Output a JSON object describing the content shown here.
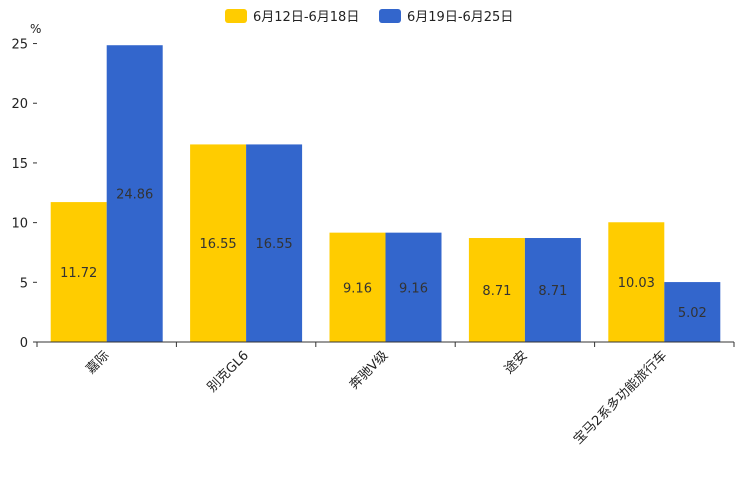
{
  "chart_data": {
    "type": "bar",
    "unit": "%",
    "categories": [
      "嘉际",
      "别克GL6",
      "奔驰V级",
      "途安",
      "宝马2系多功能旅行车"
    ],
    "series": [
      {
        "name": "6月12日-6月18日",
        "color": "#FFCC00",
        "values": [
          11.72,
          16.55,
          9.16,
          8.71,
          10.03
        ]
      },
      {
        "name": "6月19日-6月25日",
        "color": "#3366CC",
        "values": [
          24.86,
          16.55,
          9.16,
          8.71,
          5.02
        ]
      }
    ],
    "yticks": [
      0,
      5,
      10,
      15,
      20,
      25
    ],
    "ylim": [
      0,
      25.8
    ],
    "legend_position": "top-center"
  }
}
